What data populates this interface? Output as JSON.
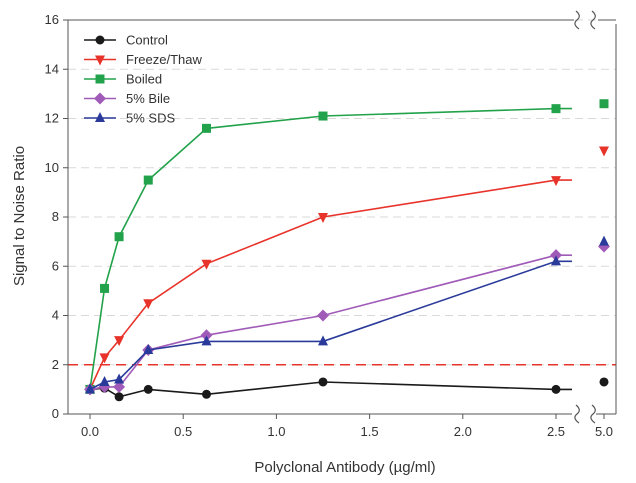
{
  "chart_data": {
    "type": "line",
    "title": "",
    "xlabel": "Polyclonal Antibody (µg/ml)",
    "ylabel": "Signal to Noise Ratio",
    "xlim": [
      -0.1,
      2.6
    ],
    "ylim": [
      0,
      16
    ],
    "grid": "horizontal-dashed",
    "legend_position": "top-left",
    "x_ticks": [
      "0.0",
      "0.5",
      "1.0",
      "1.5",
      "2.0",
      "2.5"
    ],
    "y_ticks": [
      "0",
      "2",
      "4",
      "6",
      "8",
      "10",
      "12",
      "14",
      "16"
    ],
    "broken_axis_tick": "5.0",
    "threshold_line": {
      "y": 2,
      "color": "#e8332a",
      "style": "dashed"
    },
    "series": [
      {
        "name": "Control",
        "color": "#1a1a1a",
        "marker": "circle",
        "x": [
          0,
          0.078,
          0.156,
          0.3125,
          0.625,
          1.25,
          2.5
        ],
        "y": [
          1.0,
          1.05,
          0.7,
          1.0,
          0.8,
          1.3,
          1.0
        ],
        "x_extra": 5.0,
        "y_extra": 1.3
      },
      {
        "name": "Freeze/Thaw",
        "color": "#e8332a",
        "marker": "triangle-down",
        "x": [
          0,
          0.078,
          0.156,
          0.3125,
          0.625,
          1.25,
          2.5
        ],
        "y": [
          1.0,
          2.3,
          3.0,
          4.5,
          6.1,
          8.0,
          9.5
        ],
        "x_extra": 5.0,
        "y_extra": 10.7
      },
      {
        "name": "Boiled",
        "color": "#22a24a",
        "marker": "square",
        "x": [
          0,
          0.078,
          0.156,
          0.3125,
          0.625,
          1.25,
          2.5
        ],
        "y": [
          1.0,
          5.1,
          7.2,
          9.5,
          11.6,
          12.1,
          12.4
        ],
        "x_extra": 5.0,
        "y_extra": 12.6
      },
      {
        "name": "5% Bile",
        "color": "#a05ab8",
        "marker": "diamond",
        "x": [
          0,
          0.078,
          0.156,
          0.3125,
          0.625,
          1.25,
          2.5
        ],
        "y": [
          1.0,
          1.1,
          1.1,
          2.6,
          3.2,
          4.0,
          6.45
        ],
        "x_extra": 5.0,
        "y_extra": 6.8
      },
      {
        "name": "5% SDS",
        "color": "#2a3a9a",
        "marker": "triangle-up",
        "x": [
          0,
          0.078,
          0.156,
          0.3125,
          0.625,
          1.25,
          2.5
        ],
        "y": [
          1.0,
          1.3,
          1.4,
          2.6,
          2.95,
          2.95,
          6.2
        ],
        "x_extra": 5.0,
        "y_extra": 7.0
      }
    ]
  }
}
